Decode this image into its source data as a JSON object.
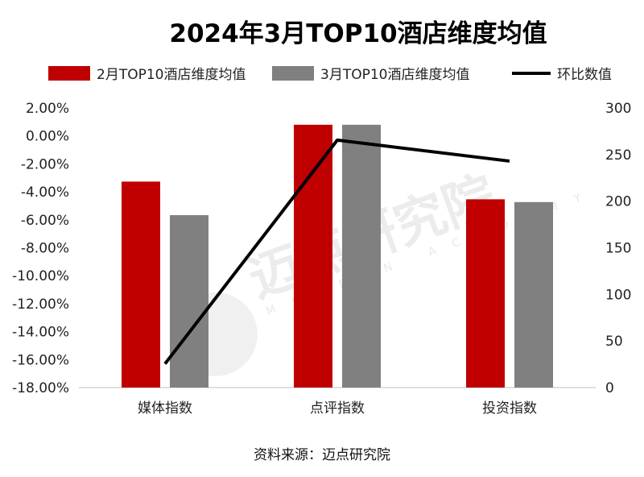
{
  "chart_data": {
    "type": "bar",
    "title": "2024年3月TOP10酒店维度均值",
    "categories": [
      "媒体指数",
      "点评指数",
      "投资指数"
    ],
    "series": [
      {
        "name": "2月TOP10酒店维度均值",
        "kind": "bar",
        "axis": "right",
        "color": "#c00000",
        "values": [
          221,
          282,
          202
        ]
      },
      {
        "name": "3月TOP10酒店维度均值",
        "kind": "bar",
        "axis": "right",
        "color": "#808080",
        "values": [
          185,
          282,
          199
        ]
      }
    ],
    "line_series": {
      "name": "环比数值",
      "kind": "line",
      "axis": "left",
      "color": "#000000",
      "values": [
        -16.3,
        -0.3,
        -1.8
      ]
    },
    "y_left": {
      "ticks": [
        "2.00%",
        "0.00%",
        "-2.00%",
        "-4.00%",
        "-6.00%",
        "-8.00%",
        "-10.00%",
        "-12.00%",
        "-14.00%",
        "-16.00%",
        "-18.00%"
      ],
      "min": -18,
      "max": 2
    },
    "y_right": {
      "ticks": [
        "300",
        "250",
        "200",
        "150",
        "100",
        "50",
        "0"
      ],
      "min": 0,
      "max": 300
    },
    "grid": false,
    "legend_position": "top"
  },
  "source_text": "资料来源：迈点研究院",
  "watermark": {
    "text": "迈点研究院",
    "sub": "MEADIN ACADEMY"
  }
}
